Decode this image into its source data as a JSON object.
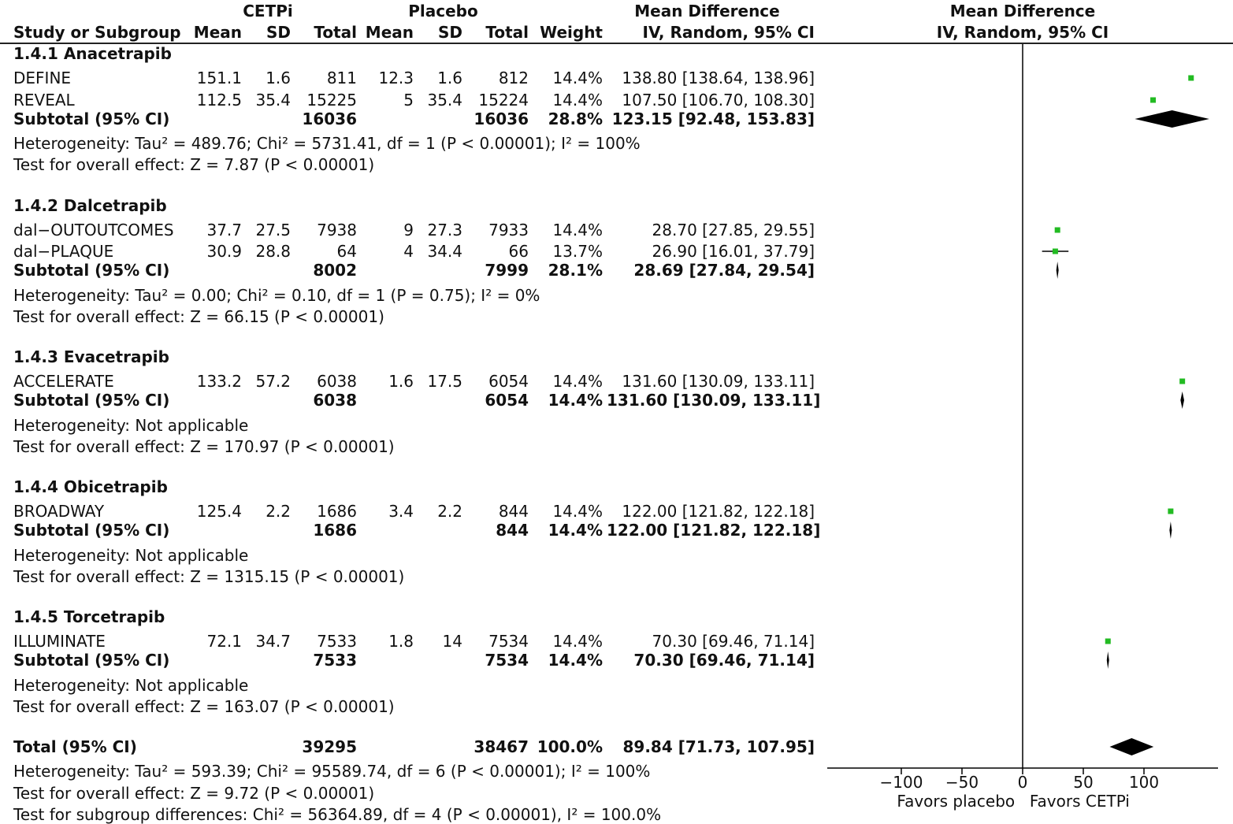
{
  "header": {
    "group1": "CETPi",
    "group2": "Placebo",
    "md_col": "Mean Difference",
    "md_sub": "IV, Random, 95% CI",
    "plot_title": "Mean Difference",
    "plot_sub": "IV, Random, 95% CI",
    "study": "Study or Subgroup",
    "mean": "Mean",
    "sd": "SD",
    "total": "Total",
    "weight": "Weight"
  },
  "subgroups": [
    {
      "title": "1.4.1 Anacetrapib",
      "studies": [
        {
          "name": "DEFINE",
          "m1": "151.1",
          "sd1": "1.6",
          "n1": "811",
          "m2": "12.3",
          "sd2": "1.6",
          "n2": "812",
          "w": "14.4%",
          "ci": "138.80 [138.64, 138.96]"
        },
        {
          "name": "REVEAL",
          "m1": "112.5",
          "sd1": "35.4",
          "n1": "15225",
          "m2": "5",
          "sd2": "35.4",
          "n2": "15224",
          "w": "14.4%",
          "ci": "107.50 [106.70, 108.30]"
        }
      ],
      "subtotal": {
        "label": "Subtotal (95% CI)",
        "n1": "16036",
        "n2": "16036",
        "w": "28.8%",
        "ci": "123.15 [92.48, 153.83]"
      },
      "het": "Heterogeneity: Tau² = 489.76; Chi² = 5731.41, df = 1 (P < 0.00001); I² = 100%",
      "test": "Test for overall effect: Z = 7.87 (P < 0.00001)"
    },
    {
      "title": "1.4.2 Dalcetrapib",
      "studies": [
        {
          "name": "dal−OUTOUTCOMES",
          "m1": "37.7",
          "sd1": "27.5",
          "n1": "7938",
          "m2": "9",
          "sd2": "27.3",
          "n2": "7933",
          "w": "14.4%",
          "ci": "28.70 [27.85, 29.55]"
        },
        {
          "name": "dal−PLAQUE",
          "m1": "30.9",
          "sd1": "28.8",
          "n1": "64",
          "m2": "4",
          "sd2": "34.4",
          "n2": "66",
          "w": "13.7%",
          "ci": "26.90 [16.01, 37.79]"
        }
      ],
      "subtotal": {
        "label": "Subtotal (95% CI)",
        "n1": "8002",
        "n2": "7999",
        "w": "28.1%",
        "ci": "28.69 [27.84, 29.54]"
      },
      "het": "Heterogeneity: Tau² = 0.00; Chi² = 0.10, df = 1 (P = 0.75); I² = 0%",
      "test": "Test for overall effect: Z = 66.15 (P < 0.00001)"
    },
    {
      "title": "1.4.3 Evacetrapib",
      "studies": [
        {
          "name": "ACCELERATE",
          "m1": "133.2",
          "sd1": "57.2",
          "n1": "6038",
          "m2": "1.6",
          "sd2": "17.5",
          "n2": "6054",
          "w": "14.4%",
          "ci": "131.60 [130.09, 133.11]"
        }
      ],
      "subtotal": {
        "label": "Subtotal (95% CI)",
        "n1": "6038",
        "n2": "6054",
        "w": "14.4%",
        "ci": "131.60 [130.09, 133.11]"
      },
      "het": "Heterogeneity: Not applicable",
      "test": "Test for overall effect: Z = 170.97 (P < 0.00001)"
    },
    {
      "title": "1.4.4 Obicetrapib",
      "studies": [
        {
          "name": "BROADWAY",
          "m1": "125.4",
          "sd1": "2.2",
          "n1": "1686",
          "m2": "3.4",
          "sd2": "2.2",
          "n2": "844",
          "w": "14.4%",
          "ci": "122.00 [121.82, 122.18]"
        }
      ],
      "subtotal": {
        "label": "Subtotal (95% CI)",
        "n1": "1686",
        "n2": "844",
        "w": "14.4%",
        "ci": "122.00 [121.82, 122.18]"
      },
      "het": "Heterogeneity: Not applicable",
      "test": "Test for overall effect: Z = 1315.15 (P < 0.00001)"
    },
    {
      "title": "1.4.5 Torcetrapib",
      "studies": [
        {
          "name": "ILLUMINATE",
          "m1": "72.1",
          "sd1": "34.7",
          "n1": "7533",
          "m2": "1.8",
          "sd2": "14",
          "n2": "7534",
          "w": "14.4%",
          "ci": "70.30 [69.46, 71.14]"
        }
      ],
      "subtotal": {
        "label": "Subtotal (95% CI)",
        "n1": "7533",
        "n2": "7534",
        "w": "14.4%",
        "ci": "70.30 [69.46, 71.14]"
      },
      "het": "Heterogeneity: Not applicable",
      "test": "Test for overall effect: Z = 163.07 (P < 0.00001)"
    }
  ],
  "total": {
    "label": "Total (95% CI)",
    "n1": "39295",
    "n2": "38467",
    "w": "100.0%",
    "ci": "89.84 [71.73, 107.95]",
    "het": "Heterogeneity: Tau² = 593.39; Chi² = 95589.74, df = 6 (P < 0.00001); I² = 100%",
    "test": "Test for overall effect: Z = 9.72 (P < 0.00001)",
    "subgroup_test": "Test for subgroup differences: Chi² = 56364.89, df = 4 (P < 0.00001), I² = 100.0%"
  },
  "chart_data": {
    "type": "forest",
    "x_ticks": [
      -100,
      -50,
      0,
      50,
      100
    ],
    "x_tick_labels": [
      "−100",
      "−50",
      "0",
      "50",
      "100"
    ],
    "xlim": [
      -160,
      160
    ],
    "favors_left": "Favors placebo",
    "favors_right": "Favors CETPi",
    "colors": {
      "study": "#22bb22",
      "summary": "#000000",
      "line": "#000000"
    },
    "studies": [
      {
        "name": "DEFINE",
        "md": 138.8,
        "lo": 138.64,
        "hi": 138.96,
        "weight": 14.4
      },
      {
        "name": "REVEAL",
        "md": 107.5,
        "lo": 106.7,
        "hi": 108.3,
        "weight": 14.4
      },
      {
        "name": "dal−OUTOUTCOMES",
        "md": 28.7,
        "lo": 27.85,
        "hi": 29.55,
        "weight": 14.4
      },
      {
        "name": "dal−PLAQUE",
        "md": 26.9,
        "lo": 16.01,
        "hi": 37.79,
        "weight": 13.7
      },
      {
        "name": "ACCELERATE",
        "md": 131.6,
        "lo": 130.09,
        "hi": 133.11,
        "weight": 14.4
      },
      {
        "name": "BROADWAY",
        "md": 122.0,
        "lo": 121.82,
        "hi": 122.18,
        "weight": 14.4
      },
      {
        "name": "ILLUMINATE",
        "md": 70.3,
        "lo": 69.46,
        "hi": 71.14,
        "weight": 14.4
      }
    ],
    "summaries": [
      {
        "name": "Subtotal 1.4.1",
        "md": 123.15,
        "lo": 92.48,
        "hi": 153.83
      },
      {
        "name": "Subtotal 1.4.2",
        "md": 28.69,
        "lo": 27.84,
        "hi": 29.54
      },
      {
        "name": "Subtotal 1.4.3",
        "md": 131.6,
        "lo": 130.09,
        "hi": 133.11
      },
      {
        "name": "Subtotal 1.4.4",
        "md": 122.0,
        "lo": 121.82,
        "hi": 122.18
      },
      {
        "name": "Subtotal 1.4.5",
        "md": 70.3,
        "lo": 69.46,
        "hi": 71.14
      },
      {
        "name": "Total",
        "md": 89.84,
        "lo": 71.73,
        "hi": 107.95
      }
    ]
  }
}
